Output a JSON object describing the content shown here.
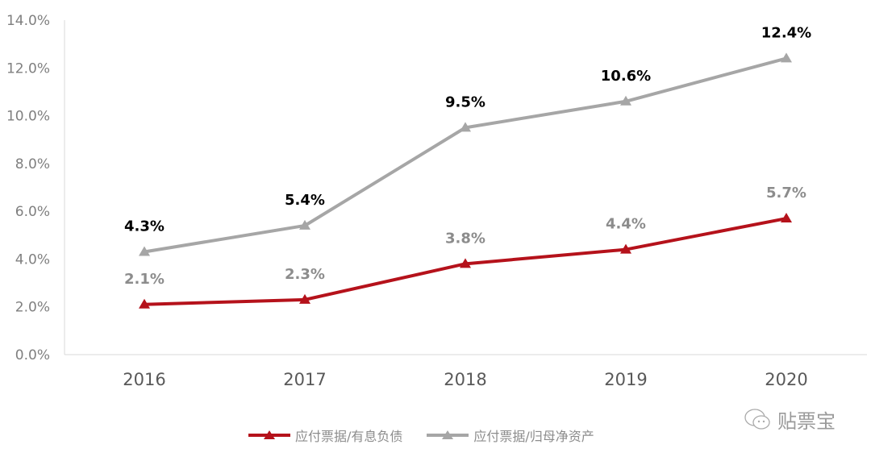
{
  "chart_data": {
    "type": "line",
    "categories": [
      "2016",
      "2017",
      "2018",
      "2019",
      "2020"
    ],
    "series": [
      {
        "name": "应付票据/有息负债",
        "values": [
          2.1,
          2.3,
          3.8,
          4.4,
          5.7
        ],
        "labels": [
          "2.1%",
          "2.3%",
          "3.8%",
          "4.4%",
          "5.7%"
        ],
        "color": "#b5121b",
        "label_color": "#8c8c8c",
        "marker": "triangle"
      },
      {
        "name": "应付票据/归母净资产",
        "values": [
          4.3,
          5.4,
          9.5,
          10.6,
          12.4
        ],
        "labels": [
          "4.3%",
          "5.4%",
          "9.5%",
          "10.6%",
          "12.4%"
        ],
        "color": "#a6a6a6",
        "label_color": "#000000",
        "marker": "triangle"
      }
    ],
    "yticks": [
      "0.0%",
      "2.0%",
      "4.0%",
      "6.0%",
      "8.0%",
      "10.0%",
      "12.0%",
      "14.0%"
    ],
    "ylim": [
      0,
      14
    ],
    "grid": false,
    "legend_position": "bottom",
    "title": "",
    "xlabel": "",
    "ylabel": ""
  },
  "watermark": {
    "text": "贴票宝",
    "icon": "wechat-icon"
  }
}
